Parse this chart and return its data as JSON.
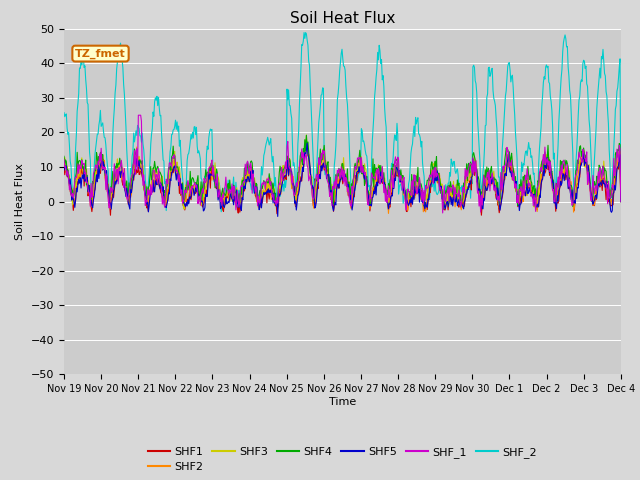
{
  "title": "Soil Heat Flux",
  "ylabel": "Soil Heat Flux",
  "xlabel": "Time",
  "ylim": [
    -50,
    50
  ],
  "yticks": [
    -50,
    -40,
    -30,
    -20,
    -10,
    0,
    10,
    20,
    30,
    40,
    50
  ],
  "fig_bg_color": "#d8d8d8",
  "plot_bg_color": "#cccccc",
  "series_colors": {
    "SHF1": "#cc0000",
    "SHF2": "#ff8800",
    "SHF3": "#cccc00",
    "SHF4": "#00aa00",
    "SHF5": "#0000cc",
    "SHF_1": "#cc00cc",
    "SHF_2": "#00cccc"
  },
  "annotation_text": "TZ_fmet",
  "annotation_color": "#cc6600",
  "annotation_bg": "#ffffcc",
  "xtick_labels": [
    "Nov 19",
    "Nov 20",
    "Nov 21",
    "Nov 22",
    "Nov 23",
    "Nov 24",
    "Nov 25",
    "Nov 26",
    "Nov 27",
    "Nov 28",
    "Nov 29",
    "Nov 30",
    "Dec 1",
    "Dec 2",
    "Dec 3",
    "Dec 4"
  ],
  "num_days": 15,
  "points_per_day": 48
}
